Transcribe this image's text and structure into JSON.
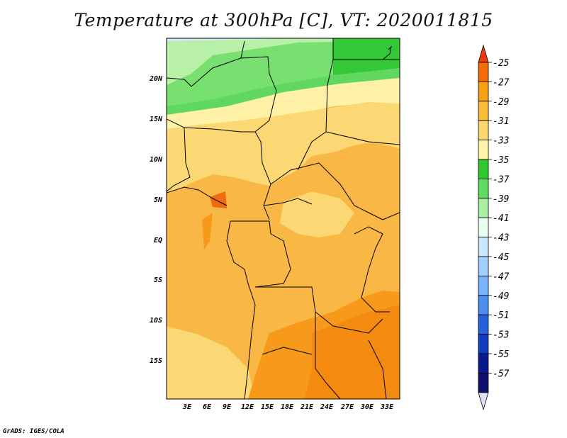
{
  "title": "Temperature at 300hPa [C], VT: 2020011815",
  "credit": "GrADS: IGES/COLA",
  "map": {
    "lat_labels": [
      "20N",
      "15N",
      "10N",
      "5N",
      "EQ",
      "5S",
      "10S",
      "15S"
    ],
    "lon_labels": [
      "3E",
      "6E",
      "9E",
      "12E",
      "15E",
      "18E",
      "21E",
      "24E",
      "27E",
      "30E",
      "33E"
    ]
  },
  "colorbar": {
    "labels": [
      "-25",
      "-27",
      "-29",
      "-31",
      "-33",
      "-35",
      "-37",
      "-39",
      "-41",
      "-43",
      "-45",
      "-47",
      "-49",
      "-51",
      "-53",
      "-55",
      "-57"
    ],
    "colors": [
      "#f03a0b",
      "#f76c06",
      "#f7a013",
      "#fbbc3a",
      "#fbd76e",
      "#fff4a9",
      "#30c830",
      "#60dc60",
      "#a8f0a0",
      "#e8fff0",
      "#c8e8ff",
      "#a0d0ff",
      "#78b4fa",
      "#4b8ef0",
      "#2760dd",
      "#0f3cc0",
      "#0a1a8c",
      "#10106e",
      "#e0e0f8"
    ]
  }
}
